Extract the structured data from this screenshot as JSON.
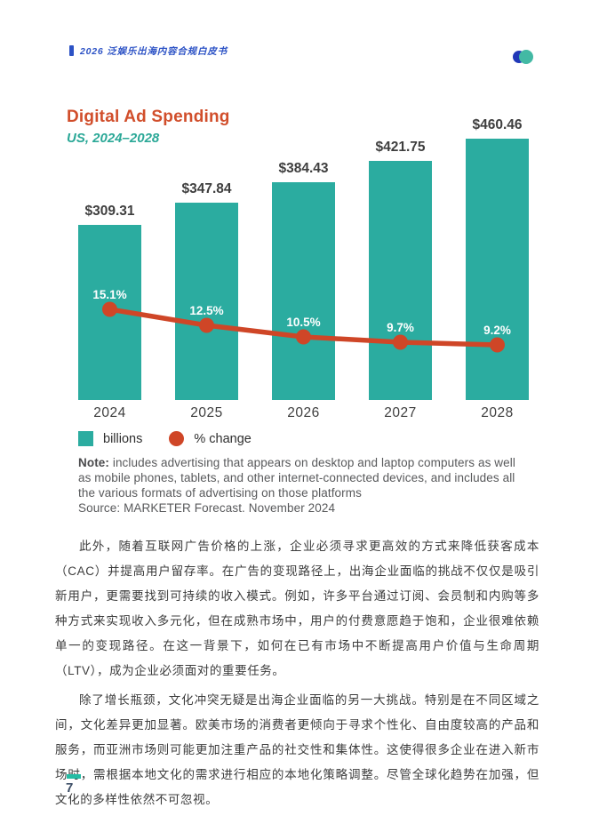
{
  "header": {
    "doc_title": "2026 泛娱乐出海内容合规白皮书"
  },
  "chart_data": {
    "type": "bar",
    "title": "Digital Ad Spending",
    "subtitle": "US, 2024–2028",
    "categories": [
      "2024",
      "2025",
      "2026",
      "2027",
      "2028"
    ],
    "series": [
      {
        "name": "billions",
        "type": "bar",
        "values": [
          309.31,
          347.84,
          384.43,
          421.75,
          460.46
        ],
        "labels": [
          "$309.31",
          "$347.84",
          "$384.43",
          "$421.75",
          "$460.46"
        ],
        "color": "#2BACA0"
      },
      {
        "name": "% change",
        "type": "line",
        "values": [
          15.1,
          12.5,
          10.5,
          9.7,
          9.2
        ],
        "labels": [
          "15.1%",
          "12.5%",
          "10.5%",
          "9.7%",
          "9.2%"
        ],
        "color": "#CF4627"
      }
    ],
    "legend": [
      {
        "label": "billions",
        "swatch": "square",
        "color": "#2BACA0"
      },
      {
        "label": "% change",
        "swatch": "circle",
        "color": "#CF4627"
      }
    ],
    "axes": {
      "x_axis_visible": false,
      "y_axis_visible": false,
      "grid": false
    },
    "legend_position": "bottom-left"
  },
  "note": {
    "label": "Note:",
    "text": " includes advertising that appears on desktop and laptop computers as well as mobile phones, tablets, and other internet-connected devices, and includes all the various formats of advertising on those platforms",
    "source": "Source: MARKETER Forecast. November 2024"
  },
  "paragraphs": [
    "此外，随着互联网广告价格的上涨，企业必须寻求更高效的方式来降低获客成本（CAC）并提高用户留存率。在广告的变现路径上，出海企业面临的挑战不仅仅是吸引新用户，更需要找到可持续的收入模式。例如，许多平台通过订阅、会员制和内购等多种方式来实现收入多元化，但在成熟市场中，用户的付费意愿趋于饱和，企业很难依赖单一的变现路径。在这一背景下，如何在已有市场中不断提高用户价值与生命周期（LTV），成为企业必须面对的重要任务。",
    "除了增长瓶颈，文化冲突无疑是出海企业面临的另一大挑战。特别是在不同区域之间，文化差异更加显著。欧美市场的消费者更倾向于寻求个性化、自由度较高的产品和服务，而亚洲市场则可能更加注重产品的社交性和集体性。这使得很多企业在进入新市场时，需根据本地文化的需求进行相应的本地化策略调整。尽管全球化趋势在加强，但文化的多样性依然不可忽视。"
  ],
  "footer": {
    "page_number": "7"
  },
  "colors": {
    "header_blue": "#2C52C5",
    "bar_teal": "#2BACA0",
    "line_red": "#CF4627",
    "title_red": "#D14E2B",
    "subtitle_teal": "#2BA897",
    "footer_teal": "#25BCA4",
    "body_text": "#3C3C3C",
    "note_gray": "#58595B"
  }
}
